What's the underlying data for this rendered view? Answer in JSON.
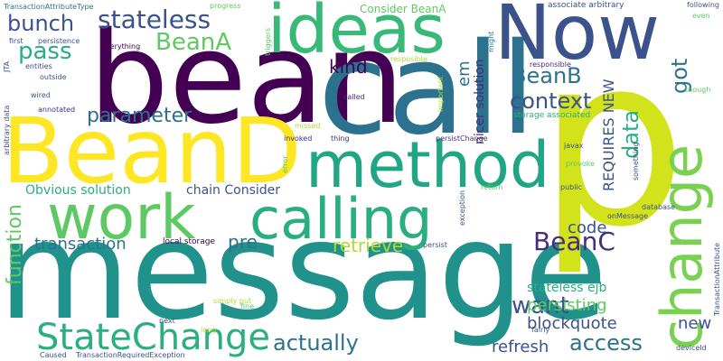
{
  "words": {
    "message": "message",
    "bean": "bean",
    "call": "call",
    "beanD": "BeanD",
    "p": "p",
    "now": "Now",
    "ideas": "ideas",
    "method": "method",
    "work": "work",
    "calling": "calling",
    "change": "change",
    "stateChange": "StateChange",
    "stateless": "stateless",
    "beanA": "BeanA",
    "beanB": "BeanB",
    "beanC": "BeanC",
    "pass": "pass",
    "bunch": "bunch",
    "kind": "kind",
    "context": "context",
    "parameter": "parameter",
    "got": "got",
    "data": "data",
    "function": "function",
    "transaction": "transaction",
    "retrieve": "retrieve",
    "pre": "pre",
    "want": "want",
    "code": "code",
    "actually": "actually",
    "access": "access",
    "refresh": "refresh",
    "persisting": "persisting",
    "blockquote": "blockquote",
    "new": "new",
    "stateless_ejb": "stateless ejb",
    "em": "em",
    "requires_new": "REQUIRES NEW",
    "nicer_solution": "nicer solution",
    "obvious_solution": "Obvious solution",
    "chain_consider": "chain Consider",
    "consider_beanA": "Consider BeanA",
    "local_storage": "local storage",
    "storage_associated": "storage associated",
    "associate_arbitrary": "associate arbitrary",
    "transactionAttributeType": "TransactionAttributeType",
    "progress": "progress",
    "first": "first",
    "persistence": "persistence",
    "everything": "everything",
    "triggers": "triggers",
    "responsible_small": "resposible",
    "responsible": "responsible",
    "might": "might",
    "following": "following",
    "even": "even",
    "jta": "JTA",
    "entities": "entities",
    "outside": "outside",
    "arbitrary_data": "arbitrary data",
    "wired": "wired",
    "annotated": "annotated",
    "called": "called",
    "important": "important",
    "missed": "missed",
    "invoked": "invoked",
    "thing": "thing",
    "persistChange": "persistChange",
    "javax": "javax",
    "provoke": "provoke",
    "though": "though",
    "something": "something",
    "error": "error",
    "exception": "exception",
    "return": "return",
    "public": "public",
    "database": "database",
    "onMessage": "onMessage",
    "transactionAttribute": "TransactionAttribute",
    "persist": "persist",
    "simply_put": "simply put",
    "next": "next",
    "long": "long",
    "fine": "fine",
    "fairly": "fairly",
    "caused": "Caused",
    "transactionRequiredException": "TransactionRequiredException",
    "deviceId": "deviceId"
  },
  "colors": {
    "dark_purple": "#440154",
    "purple": "#472d7b",
    "indigo": "#3b528b",
    "blue": "#2c728e",
    "teal": "#21918c",
    "sea": "#28ae80",
    "green": "#5ec962",
    "lime": "#addc30",
    "yellow": "#fde725"
  }
}
